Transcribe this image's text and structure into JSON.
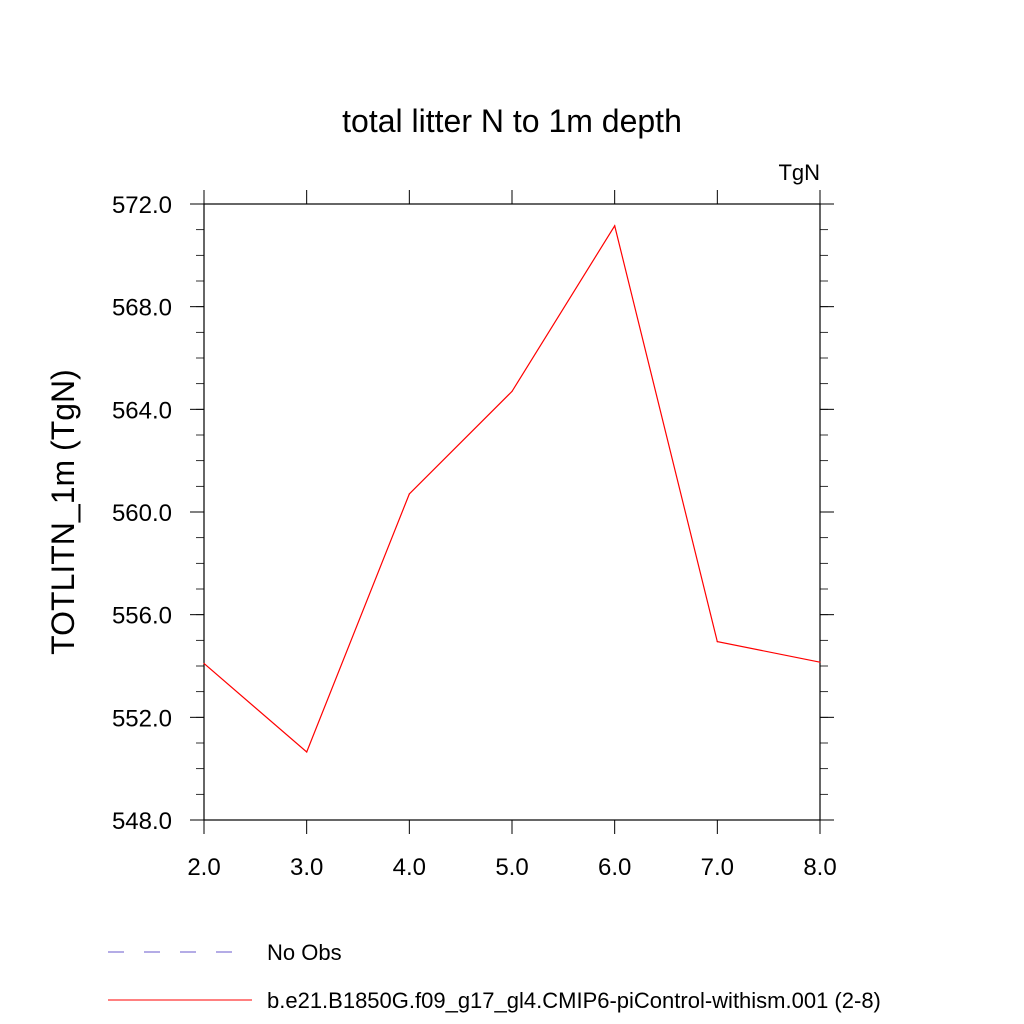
{
  "chart_data": {
    "type": "line",
    "title": "total litter N to 1m depth",
    "units_label": "TgN",
    "ylabel": "TOTLITN_1m  (TgN)",
    "xlabel": "",
    "xlim": [
      2.0,
      8.0
    ],
    "ylim": [
      548.0,
      572.0
    ],
    "x_ticks": [
      "2.0",
      "3.0",
      "4.0",
      "5.0",
      "6.0",
      "7.0",
      "8.0"
    ],
    "y_ticks": [
      "548.0",
      "552.0",
      "556.0",
      "560.0",
      "564.0",
      "568.0",
      "572.0"
    ],
    "grid": false,
    "legend_position": "bottom-left",
    "series": [
      {
        "name": "b.e21.B1850G.f09_g17_gl4.CMIP6-piControl-withism.001 (2-8)",
        "color": "#ff0000",
        "style": "solid",
        "x": [
          2.0,
          3.0,
          4.0,
          5.0,
          6.0,
          7.0,
          8.0
        ],
        "y": [
          554.1,
          550.65,
          560.7,
          564.7,
          571.15,
          554.95,
          554.15
        ]
      }
    ],
    "legend": [
      {
        "label": "No Obs",
        "color": "#6a5acd",
        "style": "dashed"
      },
      {
        "label": "b.e21.B1850G.f09_g17_gl4.CMIP6-piControl-withism.001 (2-8)",
        "color": "#ff0000",
        "style": "solid"
      }
    ]
  }
}
